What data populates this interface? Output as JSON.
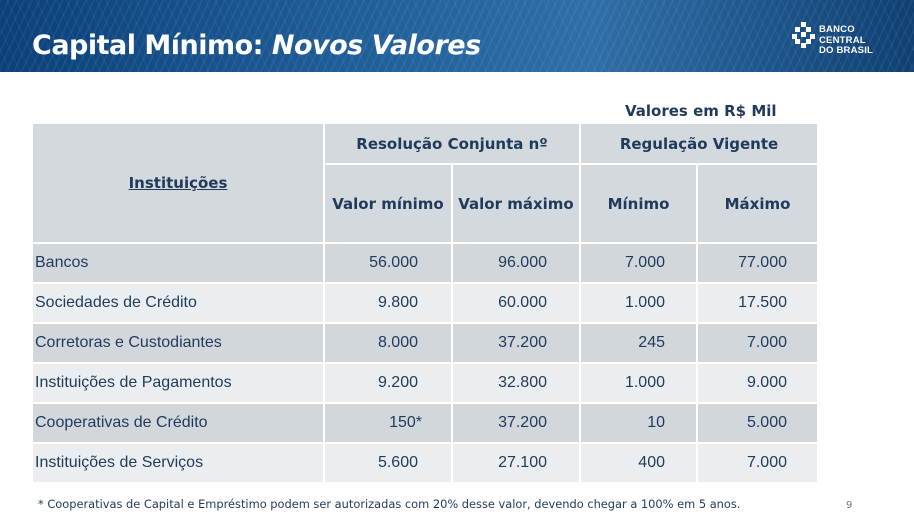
{
  "slide": {
    "title_plain": "Capital Mínimo: ",
    "title_italic": "Novos Valores",
    "logo_line1": "BANCO CENTRAL",
    "logo_line2": "DO BRASIL",
    "units_note": "Valores em R$ Mil",
    "footnote": "* Cooperativas de Capital e Empréstimo podem ser autorizadas com 20% desse valor, devendo chegar a 100% em 5 anos.",
    "page_number": "9"
  },
  "table": {
    "institutions_header": "Instituições",
    "group_resolution": "Resolução Conjunta nº",
    "group_current": "Regulação Vigente",
    "col_min_value": "Valor mínimo",
    "col_max_value": "Valor máximo",
    "col_min": "Mínimo",
    "col_max": "Máximo",
    "rows": [
      {
        "name": "Bancos",
        "valor_minimo": "56.000",
        "valor_maximo": "96.000",
        "minimo": "7.000",
        "maximo": "77.000"
      },
      {
        "name": "Sociedades de Crédito",
        "valor_minimo": "9.800",
        "valor_maximo": "60.000",
        "minimo": "1.000",
        "maximo": "17.500"
      },
      {
        "name": "Corretoras e Custodiantes",
        "valor_minimo": "8.000",
        "valor_maximo": "37.200",
        "minimo": "245",
        "maximo": "7.000"
      },
      {
        "name": "Instituições de Pagamentos",
        "valor_minimo": "9.200",
        "valor_maximo": "32.800",
        "minimo": "1.000",
        "maximo": "9.000"
      },
      {
        "name": "Cooperativas de Crédito",
        "valor_minimo": "150*",
        "valor_maximo": "37.200",
        "minimo": "10",
        "maximo": "5.000"
      },
      {
        "name": "Instituições de Serviços",
        "valor_minimo": "5.600",
        "valor_maximo": "27.100",
        "minimo": "400",
        "maximo": "7.000"
      }
    ]
  },
  "colors": {
    "header_blue": "#1d5b95",
    "text_navy": "#1f3a5a",
    "row_dark": "#d2d7dc",
    "row_light": "#ebeef0"
  },
  "icons": {
    "logo": "banco-central-logo-icon"
  }
}
